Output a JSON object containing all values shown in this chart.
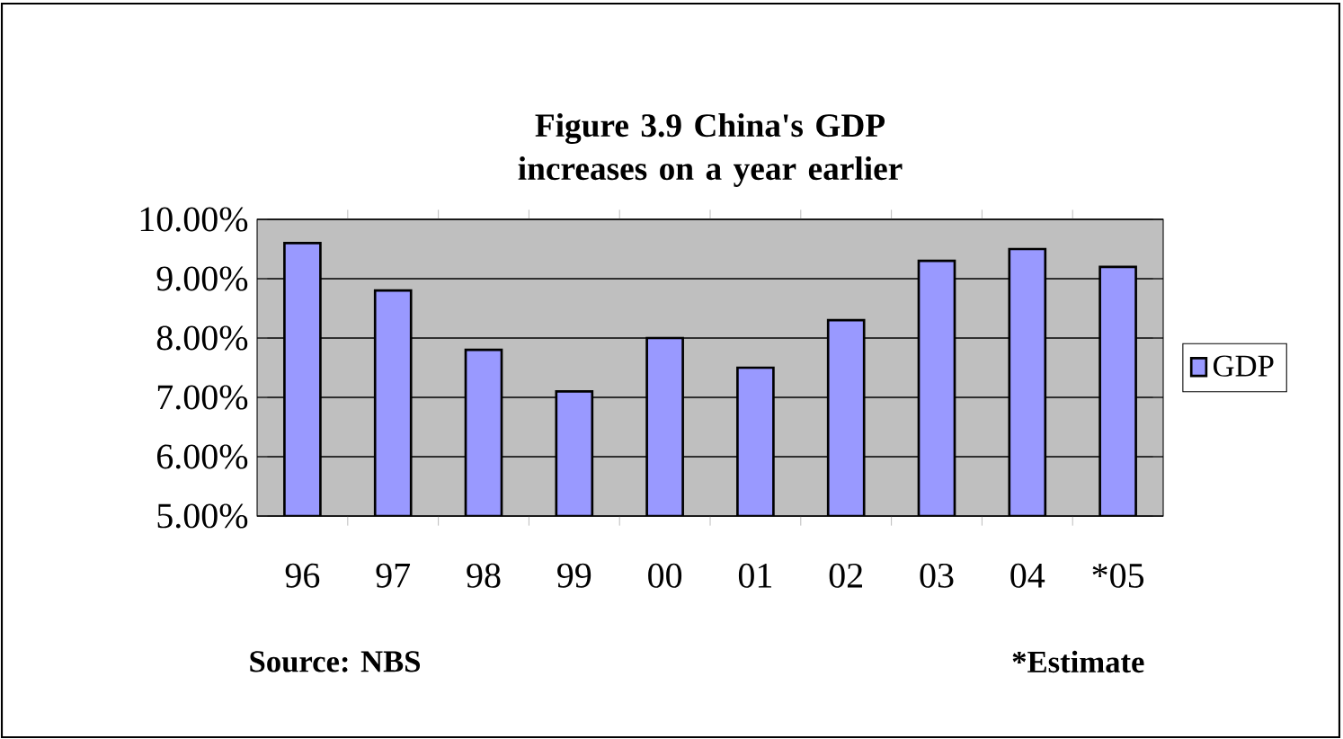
{
  "chart_data": {
    "type": "bar",
    "title": "Figure 3.9 China's GDP increases on a year earlier",
    "categories": [
      "96",
      "97",
      "98",
      "99",
      "00",
      "01",
      "02",
      "03",
      "04",
      "*05"
    ],
    "series": [
      {
        "name": "GDP",
        "color": "#9999ff",
        "values": [
          9.6,
          8.8,
          7.8,
          7.1,
          8.0,
          7.5,
          8.3,
          9.3,
          9.5,
          9.2
        ]
      }
    ],
    "ylim": [
      5,
      10
    ],
    "yticks": [
      {
        "value": 5,
        "label": "5.00%"
      },
      {
        "value": 6,
        "label": "6.00%"
      },
      {
        "value": 7,
        "label": "7.00%"
      },
      {
        "value": 8,
        "label": "8.00%"
      },
      {
        "value": 9,
        "label": "9.00%"
      },
      {
        "value": 10,
        "label": "10.00%"
      }
    ],
    "grid": "y",
    "legend": "right",
    "annotations": [
      "Source: NBS",
      "*Estimate"
    ]
  }
}
